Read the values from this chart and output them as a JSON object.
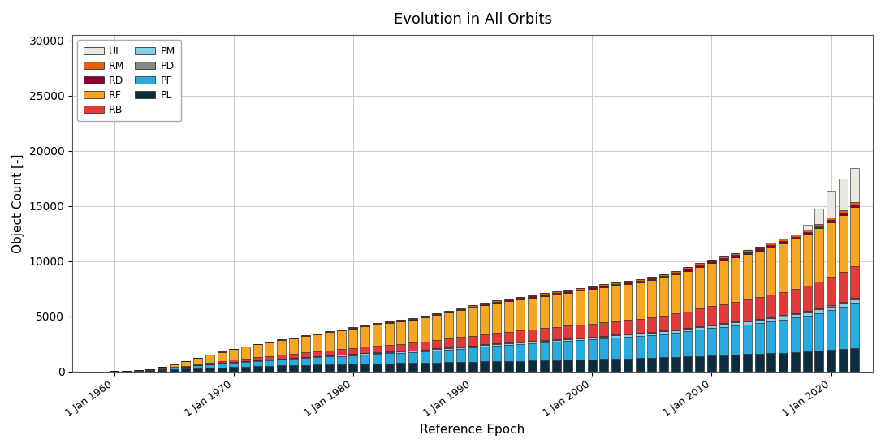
{
  "title": "Evolution in All Orbits",
  "xlabel": "Reference Epoch",
  "ylabel": "Object Count [-]",
  "colors": {
    "PL": "#0d2d3f",
    "PF": "#29abe2",
    "PM": "#87ceeb",
    "PD": "#888888",
    "RB": "#e8393a",
    "RF": "#f5a623",
    "RD": "#8b0030",
    "RM": "#e06010",
    "UI": "#e8e8e0"
  },
  "years": [
    1957,
    1958,
    1959,
    1960,
    1961,
    1962,
    1963,
    1964,
    1965,
    1966,
    1967,
    1968,
    1969,
    1970,
    1971,
    1972,
    1973,
    1974,
    1975,
    1976,
    1977,
    1978,
    1979,
    1980,
    1981,
    1982,
    1983,
    1984,
    1985,
    1986,
    1987,
    1988,
    1989,
    1990,
    1991,
    1992,
    1993,
    1994,
    1995,
    1996,
    1997,
    1998,
    1999,
    2000,
    2001,
    2002,
    2003,
    2004,
    2005,
    2006,
    2007,
    2008,
    2009,
    2010,
    2011,
    2012,
    2013,
    2014,
    2015,
    2016,
    2017,
    2018,
    2019,
    2020,
    2021,
    2022
  ],
  "data": {
    "PL": [
      1,
      2,
      4,
      10,
      20,
      50,
      90,
      140,
      190,
      240,
      290,
      335,
      375,
      415,
      450,
      480,
      510,
      540,
      565,
      590,
      615,
      640,
      665,
      690,
      715,
      730,
      745,
      760,
      775,
      790,
      810,
      830,
      855,
      875,
      900,
      920,
      940,
      960,
      980,
      1000,
      1020,
      1045,
      1070,
      1095,
      1120,
      1145,
      1170,
      1200,
      1235,
      1265,
      1300,
      1340,
      1395,
      1440,
      1480,
      1520,
      1555,
      1595,
      1640,
      1680,
      1730,
      1790,
      1860,
      1940,
      2030,
      2130
    ],
    "PF": [
      0,
      0,
      0,
      1,
      3,
      15,
      40,
      80,
      130,
      190,
      250,
      300,
      350,
      390,
      430,
      470,
      510,
      550,
      590,
      625,
      660,
      700,
      740,
      780,
      820,
      860,
      900,
      940,
      980,
      1030,
      1090,
      1150,
      1210,
      1270,
      1330,
      1390,
      1440,
      1490,
      1540,
      1590,
      1640,
      1690,
      1740,
      1790,
      1840,
      1890,
      1940,
      1990,
      2050,
      2120,
      2200,
      2290,
      2380,
      2470,
      2550,
      2640,
      2720,
      2810,
      2910,
      3020,
      3140,
      3280,
      3440,
      3630,
      3850,
      4100
    ],
    "PM": [
      0,
      0,
      0,
      0,
      0,
      1,
      2,
      4,
      7,
      11,
      16,
      21,
      27,
      33,
      39,
      45,
      51,
      57,
      63,
      69,
      75,
      81,
      87,
      93,
      99,
      105,
      111,
      117,
      123,
      129,
      135,
      141,
      147,
      153,
      159,
      165,
      170,
      175,
      180,
      185,
      190,
      195,
      200,
      205,
      210,
      215,
      220,
      225,
      230,
      235,
      240,
      245,
      250,
      255,
      260,
      265,
      270,
      275,
      280,
      285,
      290,
      295,
      300,
      305,
      310,
      315
    ],
    "PD": [
      0,
      0,
      0,
      0,
      0,
      1,
      1,
      2,
      3,
      4,
      5,
      6,
      8,
      10,
      12,
      14,
      16,
      18,
      20,
      22,
      24,
      26,
      28,
      30,
      32,
      34,
      36,
      38,
      40,
      42,
      44,
      46,
      48,
      50,
      52,
      54,
      56,
      58,
      60,
      62,
      64,
      66,
      68,
      70,
      72,
      74,
      76,
      78,
      80,
      82,
      84,
      86,
      88,
      90,
      92,
      94,
      96,
      98,
      100,
      102,
      104,
      106,
      108,
      110,
      112,
      114
    ],
    "RB": [
      0,
      0,
      1,
      2,
      5,
      10,
      20,
      35,
      55,
      80,
      110,
      145,
      180,
      215,
      250,
      285,
      320,
      355,
      385,
      415,
      445,
      475,
      505,
      535,
      565,
      595,
      625,
      655,
      685,
      720,
      760,
      800,
      845,
      890,
      935,
      975,
      1005,
      1035,
      1060,
      1085,
      1110,
      1135,
      1160,
      1185,
      1210,
      1235,
      1260,
      1285,
      1315,
      1355,
      1410,
      1480,
      1560,
      1640,
      1710,
      1780,
      1850,
      1930,
      2020,
      2110,
      2210,
      2320,
      2440,
      2570,
      2710,
      2860
    ],
    "RF": [
      0,
      0,
      0,
      1,
      5,
      20,
      70,
      160,
      280,
      420,
      560,
      695,
      820,
      940,
      1050,
      1150,
      1240,
      1320,
      1400,
      1475,
      1545,
      1620,
      1700,
      1780,
      1860,
      1930,
      1990,
      2050,
      2110,
      2180,
      2260,
      2350,
      2450,
      2540,
      2630,
      2710,
      2770,
      2820,
      2870,
      2920,
      2960,
      3010,
      3060,
      3110,
      3160,
      3210,
      3260,
      3310,
      3370,
      3450,
      3550,
      3670,
      3790,
      3900,
      3980,
      4060,
      4140,
      4220,
      4310,
      4410,
      4530,
      4660,
      4810,
      4980,
      5160,
      5350
    ],
    "RD": [
      0,
      0,
      0,
      0,
      0,
      1,
      2,
      3,
      5,
      7,
      9,
      12,
      15,
      18,
      21,
      24,
      28,
      32,
      36,
      40,
      44,
      48,
      52,
      56,
      60,
      64,
      68,
      72,
      76,
      80,
      84,
      88,
      92,
      96,
      100,
      104,
      108,
      112,
      116,
      120,
      124,
      128,
      132,
      136,
      140,
      144,
      148,
      152,
      156,
      160,
      164,
      168,
      172,
      176,
      180,
      184,
      188,
      192,
      196,
      200,
      204,
      208,
      212,
      216,
      220,
      224
    ],
    "RM": [
      0,
      0,
      0,
      0,
      0,
      1,
      1,
      2,
      4,
      6,
      8,
      11,
      14,
      17,
      20,
      23,
      26,
      30,
      34,
      38,
      42,
      46,
      50,
      54,
      58,
      62,
      66,
      70,
      74,
      78,
      82,
      86,
      90,
      94,
      98,
      102,
      106,
      110,
      114,
      118,
      122,
      126,
      130,
      134,
      138,
      142,
      146,
      150,
      154,
      158,
      162,
      166,
      170,
      174,
      178,
      182,
      186,
      190,
      194,
      198,
      202,
      206,
      210,
      214,
      218,
      222
    ],
    "UI": [
      0,
      0,
      0,
      0,
      0,
      0,
      0,
      0,
      0,
      0,
      0,
      0,
      0,
      0,
      0,
      0,
      0,
      0,
      0,
      0,
      0,
      0,
      0,
      0,
      0,
      0,
      0,
      0,
      0,
      0,
      0,
      0,
      0,
      0,
      0,
      0,
      0,
      0,
      0,
      0,
      0,
      0,
      0,
      0,
      0,
      0,
      0,
      0,
      0,
      0,
      0,
      0,
      0,
      0,
      0,
      0,
      0,
      0,
      0,
      0,
      0,
      400,
      1400,
      2400,
      2900,
      3100
    ]
  },
  "ylim": [
    0,
    30500
  ],
  "yticks": [
    0,
    5000,
    10000,
    15000,
    20000,
    25000,
    30000
  ],
  "xtick_labels": [
    "1 Jan 1960",
    "1 Jan 1970",
    "1 Jan 1980",
    "1 Jan 1990",
    "1 Jan 2000",
    "1 Jan 2010",
    "1 Jan 2020"
  ],
  "xtick_years": [
    1960,
    1970,
    1980,
    1990,
    2000,
    2010,
    2020
  ],
  "background_color": "#ffffff",
  "grid_color": "#cccccc",
  "bar_edge_color": "#1a1a1a",
  "stack_order": [
    "PL",
    "PF",
    "PM",
    "PD",
    "RB",
    "RF",
    "RD",
    "RM",
    "UI"
  ],
  "legend_left": [
    "UI",
    "RM",
    "RD",
    "RF",
    "RB"
  ],
  "legend_right": [
    "PM",
    "PD",
    "PF",
    "PL"
  ]
}
